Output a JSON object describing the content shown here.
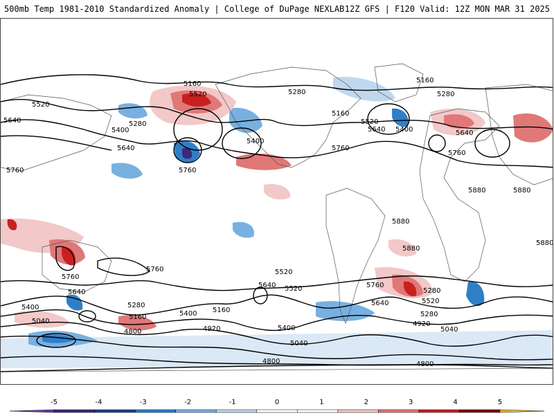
{
  "header": {
    "title": "500mb Temp 1981-2010 Standardized Anomaly | College of DuPage NEXLAB",
    "run_info": "12Z GFS | F120 Valid: 12Z MON MAR 31 2025"
  },
  "contour_labels": [
    {
      "text": "5160"
    },
    {
      "text": "5520"
    },
    {
      "text": "5280"
    },
    {
      "text": "5160"
    },
    {
      "text": "5280"
    },
    {
      "text": "5520"
    },
    {
      "text": "5640"
    },
    {
      "text": "5280"
    },
    {
      "text": "5400"
    },
    {
      "text": "5640"
    },
    {
      "text": "5400"
    },
    {
      "text": "5760"
    },
    {
      "text": "5160"
    },
    {
      "text": "5520"
    },
    {
      "text": "5640"
    },
    {
      "text": "5400"
    },
    {
      "text": "5760"
    },
    {
      "text": "5640"
    },
    {
      "text": "5760"
    },
    {
      "text": "5880"
    },
    {
      "text": "5880"
    },
    {
      "text": "5880"
    },
    {
      "text": "5880"
    },
    {
      "text": "5880"
    },
    {
      "text": "5760"
    },
    {
      "text": "5760"
    },
    {
      "text": "5760"
    },
    {
      "text": "5520"
    },
    {
      "text": "5640"
    },
    {
      "text": "5520"
    },
    {
      "text": "5760"
    },
    {
      "text": "5280"
    },
    {
      "text": "5640"
    },
    {
      "text": "5280"
    },
    {
      "text": "5640"
    },
    {
      "text": "5520"
    },
    {
      "text": "5400"
    },
    {
      "text": "5160"
    },
    {
      "text": "5280"
    },
    {
      "text": "5400"
    },
    {
      "text": "5160"
    },
    {
      "text": "5040"
    },
    {
      "text": "4920"
    },
    {
      "text": "4800"
    },
    {
      "text": "5400"
    },
    {
      "text": "5040"
    },
    {
      "text": "5040"
    },
    {
      "text": "4920"
    },
    {
      "text": "4800"
    },
    {
      "text": "4800"
    }
  ],
  "colorbar": {
    "ticks": [
      "-5",
      "-4",
      "-3",
      "-2",
      "-1",
      "0",
      "1",
      "2",
      "3",
      "4",
      "5"
    ],
    "colors": [
      "#3a2a7a",
      "#1f3f8a",
      "#2f7fc8",
      "#78b0e0",
      "#c0d8ee",
      "#ffffff",
      "#ffffff",
      "#f2c8c8",
      "#e07878",
      "#c82020",
      "#7a0a0a"
    ],
    "under_color": "#6a3cae",
    "over_color": "#f0c020"
  },
  "colors": {
    "cold_strong": "#2f7fc8",
    "cold_mid": "#78b0e0",
    "cold_light": "#d4e4f4",
    "warm_light": "#f6d2d2",
    "warm_mid": "#e89090",
    "warm_strong": "#d02828",
    "warm_extreme": "#8a0a0a"
  }
}
